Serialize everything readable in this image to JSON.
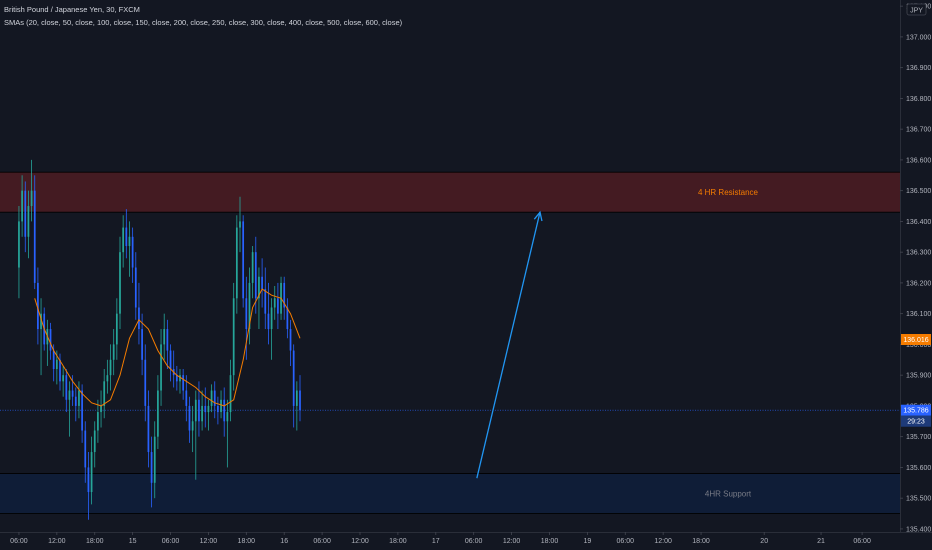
{
  "header": {
    "symbol_title": "British Pound / Japanese Yen, 30, FXCM",
    "sma_legend": "SMAs (20, close, 50, close, 100, close, 150, close, 200, close, 250, close, 300, close, 400, close, 500, close, 600, close)"
  },
  "currency_badge": "JPY",
  "colors": {
    "background": "#131722",
    "candle_up": "#26a69a",
    "candle_down": "#2962ff",
    "sma": "#f57c00",
    "resistance_fill": "#4a1c22",
    "support_fill": "#0f1e3a",
    "zone_text_res": "#f57c00",
    "zone_text_sup": "#787b86",
    "arrow": "#2196f3",
    "price_line": "#2962ff"
  },
  "price_badges": {
    "orange_label": "136.016",
    "orange_value": 136.016,
    "blue_label": "135.786",
    "blue_value": 135.786,
    "timer_label": "29:23"
  },
  "chart_data": {
    "type": "candlestick",
    "title": "British Pound / Japanese Yen, 30, FXCM",
    "y_axis": {
      "ticks": [
        137.1,
        137.0,
        136.9,
        136.8,
        136.7,
        136.6,
        136.5,
        136.4,
        136.3,
        136.2,
        136.1,
        136.0,
        135.9,
        135.8,
        135.7,
        135.6,
        135.5,
        135.4
      ],
      "tick_labels": [
        "137.100",
        "137.000",
        "136.900",
        "136.800",
        "136.700",
        "136.600",
        "136.500",
        "136.400",
        "136.300",
        "136.200",
        "136.100",
        "136.000",
        "135.900",
        "135.800",
        "135.700",
        "135.600",
        "135.500",
        "135.400"
      ],
      "range": [
        135.39,
        137.12
      ]
    },
    "x_axis": {
      "tick_labels": [
        "06:00",
        "12:00",
        "18:00",
        "15",
        "06:00",
        "12:00",
        "18:00",
        "16",
        "06:00",
        "12:00",
        "18:00",
        "17",
        "06:00",
        "12:00",
        "18:00",
        "19",
        "06:00",
        "12:00",
        "18:00",
        "20",
        "21",
        "06:00"
      ],
      "tick_index": [
        0,
        12,
        24,
        36,
        48,
        60,
        72,
        84,
        96,
        108,
        120,
        132,
        144,
        156,
        168,
        180,
        192,
        204,
        216,
        236,
        254,
        267
      ],
      "index_range": [
        -6,
        279
      ]
    },
    "zones": [
      {
        "label": "4 HR Resistance",
        "from": 136.43,
        "to": 136.56
      },
      {
        "label": "4HR Support",
        "from": 135.45,
        "to": 135.58
      }
    ],
    "arrow": {
      "from": [
        145,
        135.565
      ],
      "to": [
        165,
        136.43
      ]
    },
    "candles": [
      {
        "i": 0,
        "o": 136.25,
        "h": 136.45,
        "l": 136.15,
        "c": 136.4
      },
      {
        "i": 1,
        "o": 136.4,
        "h": 136.55,
        "l": 136.35,
        "c": 136.5
      },
      {
        "i": 2,
        "o": 136.5,
        "h": 136.53,
        "l": 136.3,
        "c": 136.35
      },
      {
        "i": 3,
        "o": 136.35,
        "h": 136.5,
        "l": 136.28,
        "c": 136.45
      },
      {
        "i": 4,
        "o": 136.45,
        "h": 136.6,
        "l": 136.4,
        "c": 136.5
      },
      {
        "i": 5,
        "o": 136.5,
        "h": 136.55,
        "l": 136.18,
        "c": 136.2
      },
      {
        "i": 6,
        "o": 136.2,
        "h": 136.25,
        "l": 136.0,
        "c": 136.05
      },
      {
        "i": 7,
        "o": 136.05,
        "h": 136.15,
        "l": 135.9,
        "c": 136.1
      },
      {
        "i": 8,
        "o": 136.1,
        "h": 136.12,
        "l": 135.98,
        "c": 136.0
      },
      {
        "i": 9,
        "o": 136.0,
        "h": 136.08,
        "l": 135.93,
        "c": 136.05
      },
      {
        "i": 10,
        "o": 136.05,
        "h": 136.07,
        "l": 135.95,
        "c": 135.98
      },
      {
        "i": 11,
        "o": 135.98,
        "h": 136.0,
        "l": 135.88,
        "c": 135.92
      },
      {
        "i": 12,
        "o": 135.92,
        "h": 135.98,
        "l": 135.87,
        "c": 135.95
      },
      {
        "i": 13,
        "o": 135.95,
        "h": 135.97,
        "l": 135.85,
        "c": 135.88
      },
      {
        "i": 14,
        "o": 135.88,
        "h": 135.93,
        "l": 135.83,
        "c": 135.9
      },
      {
        "i": 15,
        "o": 135.9,
        "h": 135.92,
        "l": 135.78,
        "c": 135.82
      },
      {
        "i": 16,
        "o": 135.82,
        "h": 135.88,
        "l": 135.7,
        "c": 135.85
      },
      {
        "i": 17,
        "o": 135.85,
        "h": 135.9,
        "l": 135.8,
        "c": 135.83
      },
      {
        "i": 18,
        "o": 135.83,
        "h": 135.86,
        "l": 135.75,
        "c": 135.8
      },
      {
        "i": 19,
        "o": 135.8,
        "h": 135.88,
        "l": 135.76,
        "c": 135.85
      },
      {
        "i": 20,
        "o": 135.85,
        "h": 135.87,
        "l": 135.68,
        "c": 135.72
      },
      {
        "i": 21,
        "o": 135.72,
        "h": 135.75,
        "l": 135.55,
        "c": 135.6
      },
      {
        "i": 22,
        "o": 135.6,
        "h": 135.65,
        "l": 135.43,
        "c": 135.52
      },
      {
        "i": 23,
        "o": 135.52,
        "h": 135.7,
        "l": 135.48,
        "c": 135.65
      },
      {
        "i": 24,
        "o": 135.65,
        "h": 135.75,
        "l": 135.6,
        "c": 135.72
      },
      {
        "i": 25,
        "o": 135.72,
        "h": 135.82,
        "l": 135.68,
        "c": 135.78
      },
      {
        "i": 26,
        "o": 135.78,
        "h": 135.85,
        "l": 135.73,
        "c": 135.8
      },
      {
        "i": 27,
        "o": 135.8,
        "h": 135.92,
        "l": 135.76,
        "c": 135.88
      },
      {
        "i": 28,
        "o": 135.88,
        "h": 135.95,
        "l": 135.84,
        "c": 135.9
      },
      {
        "i": 29,
        "o": 135.9,
        "h": 136.0,
        "l": 135.85,
        "c": 135.95
      },
      {
        "i": 30,
        "o": 135.95,
        "h": 136.05,
        "l": 135.9,
        "c": 136.0
      },
      {
        "i": 31,
        "o": 136.0,
        "h": 136.15,
        "l": 135.95,
        "c": 136.1
      },
      {
        "i": 32,
        "o": 136.1,
        "h": 136.35,
        "l": 136.05,
        "c": 136.3
      },
      {
        "i": 33,
        "o": 136.3,
        "h": 136.42,
        "l": 136.25,
        "c": 136.38
      },
      {
        "i": 34,
        "o": 136.38,
        "h": 136.44,
        "l": 136.28,
        "c": 136.32
      },
      {
        "i": 35,
        "o": 136.32,
        "h": 136.4,
        "l": 136.22,
        "c": 136.35
      },
      {
        "i": 36,
        "o": 136.35,
        "h": 136.38,
        "l": 136.2,
        "c": 136.25
      },
      {
        "i": 37,
        "o": 136.25,
        "h": 136.3,
        "l": 136.08,
        "c": 136.12
      },
      {
        "i": 38,
        "o": 136.12,
        "h": 136.2,
        "l": 136.0,
        "c": 136.05
      },
      {
        "i": 39,
        "o": 136.05,
        "h": 136.1,
        "l": 135.9,
        "c": 135.95
      },
      {
        "i": 40,
        "o": 135.95,
        "h": 136.0,
        "l": 135.75,
        "c": 135.8
      },
      {
        "i": 41,
        "o": 135.8,
        "h": 135.85,
        "l": 135.6,
        "c": 135.65
      },
      {
        "i": 42,
        "o": 135.65,
        "h": 135.7,
        "l": 135.47,
        "c": 135.55
      },
      {
        "i": 43,
        "o": 135.55,
        "h": 135.75,
        "l": 135.5,
        "c": 135.7
      },
      {
        "i": 44,
        "o": 135.7,
        "h": 135.9,
        "l": 135.66,
        "c": 135.85
      },
      {
        "i": 45,
        "o": 135.85,
        "h": 136.05,
        "l": 135.8,
        "c": 136.0
      },
      {
        "i": 46,
        "o": 136.0,
        "h": 136.1,
        "l": 135.95,
        "c": 136.05
      },
      {
        "i": 47,
        "o": 136.05,
        "h": 136.08,
        "l": 135.92,
        "c": 135.98
      },
      {
        "i": 48,
        "o": 135.98,
        "h": 136.0,
        "l": 135.88,
        "c": 135.92
      },
      {
        "i": 49,
        "o": 135.92,
        "h": 135.98,
        "l": 135.86,
        "c": 135.9
      },
      {
        "i": 50,
        "o": 135.9,
        "h": 135.93,
        "l": 135.85,
        "c": 135.88
      },
      {
        "i": 51,
        "o": 135.88,
        "h": 135.92,
        "l": 135.84,
        "c": 135.9
      },
      {
        "i": 52,
        "o": 135.9,
        "h": 135.92,
        "l": 135.82,
        "c": 135.85
      },
      {
        "i": 53,
        "o": 135.85,
        "h": 135.9,
        "l": 135.75,
        "c": 135.8
      },
      {
        "i": 54,
        "o": 135.8,
        "h": 135.83,
        "l": 135.68,
        "c": 135.72
      },
      {
        "i": 55,
        "o": 135.72,
        "h": 135.8,
        "l": 135.65,
        "c": 135.75
      },
      {
        "i": 56,
        "o": 135.75,
        "h": 135.85,
        "l": 135.56,
        "c": 135.82
      },
      {
        "i": 57,
        "o": 135.82,
        "h": 135.88,
        "l": 135.7,
        "c": 135.75
      },
      {
        "i": 58,
        "o": 135.75,
        "h": 135.85,
        "l": 135.72,
        "c": 135.8
      },
      {
        "i": 59,
        "o": 135.8,
        "h": 135.86,
        "l": 135.73,
        "c": 135.78
      },
      {
        "i": 60,
        "o": 135.78,
        "h": 135.82,
        "l": 135.72,
        "c": 135.8
      },
      {
        "i": 61,
        "o": 135.8,
        "h": 135.87,
        "l": 135.78,
        "c": 135.85
      },
      {
        "i": 62,
        "o": 135.85,
        "h": 135.88,
        "l": 135.76,
        "c": 135.8
      },
      {
        "i": 63,
        "o": 135.8,
        "h": 135.83,
        "l": 135.74,
        "c": 135.78
      },
      {
        "i": 64,
        "o": 135.78,
        "h": 135.85,
        "l": 135.76,
        "c": 135.82
      },
      {
        "i": 65,
        "o": 135.82,
        "h": 135.86,
        "l": 135.7,
        "c": 135.75
      },
      {
        "i": 66,
        "o": 135.75,
        "h": 135.82,
        "l": 135.6,
        "c": 135.78
      },
      {
        "i": 67,
        "o": 135.78,
        "h": 135.95,
        "l": 135.75,
        "c": 135.9
      },
      {
        "i": 68,
        "o": 135.9,
        "h": 136.2,
        "l": 135.85,
        "c": 136.15
      },
      {
        "i": 69,
        "o": 136.15,
        "h": 136.42,
        "l": 136.1,
        "c": 136.38
      },
      {
        "i": 70,
        "o": 136.38,
        "h": 136.48,
        "l": 136.3,
        "c": 136.4
      },
      {
        "i": 71,
        "o": 136.4,
        "h": 136.42,
        "l": 136.12,
        "c": 136.15
      },
      {
        "i": 72,
        "o": 136.15,
        "h": 136.22,
        "l": 135.95,
        "c": 136.05
      },
      {
        "i": 73,
        "o": 136.05,
        "h": 136.25,
        "l": 136.0,
        "c": 136.2
      },
      {
        "i": 74,
        "o": 136.2,
        "h": 136.32,
        "l": 136.15,
        "c": 136.3
      },
      {
        "i": 75,
        "o": 136.3,
        "h": 136.35,
        "l": 136.1,
        "c": 136.15
      },
      {
        "i": 76,
        "o": 136.15,
        "h": 136.25,
        "l": 136.05,
        "c": 136.22
      },
      {
        "i": 77,
        "o": 136.22,
        "h": 136.28,
        "l": 136.12,
        "c": 136.18
      },
      {
        "i": 78,
        "o": 136.18,
        "h": 136.25,
        "l": 136.05,
        "c": 136.1
      },
      {
        "i": 79,
        "o": 136.1,
        "h": 136.2,
        "l": 136.0,
        "c": 136.05
      },
      {
        "i": 80,
        "o": 136.05,
        "h": 136.15,
        "l": 135.95,
        "c": 136.12
      },
      {
        "i": 81,
        "o": 136.12,
        "h": 136.19,
        "l": 136.08,
        "c": 136.15
      },
      {
        "i": 82,
        "o": 136.15,
        "h": 136.2,
        "l": 136.05,
        "c": 136.1
      },
      {
        "i": 83,
        "o": 136.1,
        "h": 136.22,
        "l": 136.08,
        "c": 136.2
      },
      {
        "i": 84,
        "o": 136.2,
        "h": 136.22,
        "l": 136.08,
        "c": 136.12
      },
      {
        "i": 85,
        "o": 136.12,
        "h": 136.15,
        "l": 136.02,
        "c": 136.05
      },
      {
        "i": 86,
        "o": 136.05,
        "h": 136.08,
        "l": 135.93,
        "c": 135.98
      },
      {
        "i": 87,
        "o": 135.98,
        "h": 136.0,
        "l": 135.73,
        "c": 135.8
      },
      {
        "i": 88,
        "o": 135.8,
        "h": 135.88,
        "l": 135.72,
        "c": 135.85
      },
      {
        "i": 89,
        "o": 135.85,
        "h": 135.9,
        "l": 135.75,
        "c": 135.786
      }
    ],
    "sma_line": [
      [
        5,
        136.15
      ],
      [
        8,
        136.05
      ],
      [
        11,
        135.98
      ],
      [
        14,
        135.93
      ],
      [
        17,
        135.88
      ],
      [
        20,
        135.84
      ],
      [
        23,
        135.81
      ],
      [
        26,
        135.8
      ],
      [
        29,
        135.82
      ],
      [
        32,
        135.9
      ],
      [
        35,
        136.02
      ],
      [
        38,
        136.08
      ],
      [
        41,
        136.05
      ],
      [
        44,
        135.98
      ],
      [
        47,
        135.93
      ],
      [
        50,
        135.9
      ],
      [
        53,
        135.88
      ],
      [
        56,
        135.86
      ],
      [
        59,
        135.83
      ],
      [
        62,
        135.81
      ],
      [
        65,
        135.8
      ],
      [
        68,
        135.82
      ],
      [
        71,
        135.95
      ],
      [
        74,
        136.12
      ],
      [
        77,
        136.18
      ],
      [
        80,
        136.16
      ],
      [
        83,
        136.15
      ],
      [
        86,
        136.1
      ],
      [
        89,
        136.02
      ]
    ]
  }
}
